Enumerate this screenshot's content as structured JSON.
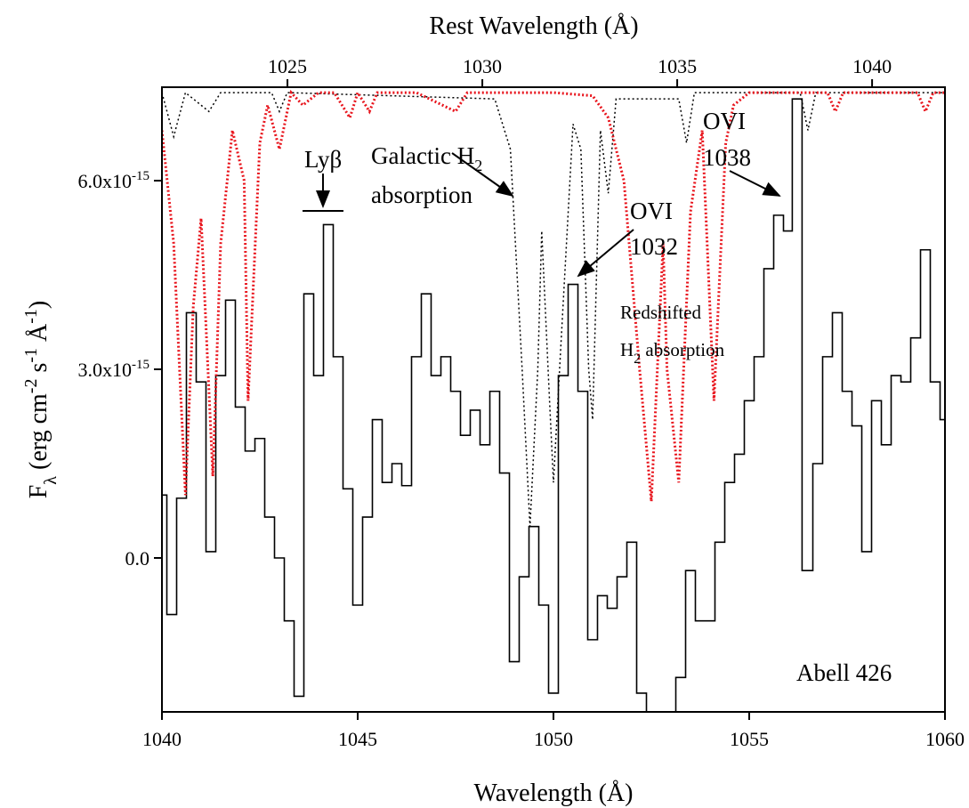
{
  "chart_data": {
    "type": "spectrum",
    "xlabel": "Wavelength (Å)",
    "x2label": "Rest Wavelength (Å)",
    "ylabel": [
      {
        "text": "F"
      },
      {
        "text": "λ",
        "shift": "sub"
      },
      {
        "text": " (erg cm"
      },
      {
        "text": "-2",
        "shift": "super"
      },
      {
        "text": " s"
      },
      {
        "text": "-1",
        "shift": "super"
      },
      {
        "text": " Å"
      },
      {
        "text": "-1",
        "shift": "super"
      },
      {
        "text": ")"
      }
    ],
    "xlim": [
      1040,
      1060
    ],
    "xticks": [
      1040,
      1045,
      1050,
      1055,
      1060
    ],
    "x2lim": [
      1021.78,
      1041.87
    ],
    "x2ticks": [
      1025,
      1030,
      1035,
      1040
    ],
    "ylim": [
      -2.448e-15,
      7.486e-15
    ],
    "yticks": [
      {
        "value": 0,
        "label": "0.0"
      },
      {
        "value": 3e-15,
        "label": "3.0x10",
        "exponent": "-15"
      },
      {
        "value": 6e-15,
        "label": "6.0x10",
        "exponent": "-15"
      }
    ],
    "series": [
      {
        "color": "#000000",
        "style": "step",
        "x": [
          1040.0,
          1040.25,
          1040.5,
          1040.75,
          1041.0,
          1041.25,
          1041.5,
          1041.75,
          1042.0,
          1042.25,
          1042.5,
          1042.75,
          1043.0,
          1043.25,
          1043.5,
          1043.75,
          1044.0,
          1044.25,
          1044.5,
          1044.75,
          1045.0,
          1045.25,
          1045.5,
          1045.75,
          1046.0,
          1046.25,
          1046.5,
          1046.75,
          1047.0,
          1047.25,
          1047.5,
          1047.75,
          1048.0,
          1048.25,
          1048.5,
          1048.75,
          1049.0,
          1049.25,
          1049.5,
          1049.75,
          1050.0,
          1050.25,
          1050.5,
          1050.75,
          1051.0,
          1051.25,
          1051.5,
          1051.75,
          1052.0,
          1052.25,
          1052.5,
          1052.75,
          1053.0,
          1053.25,
          1053.5,
          1053.75,
          1054.0,
          1054.25,
          1054.5,
          1054.75,
          1055.0,
          1055.25,
          1055.5,
          1055.75,
          1056.0,
          1056.2,
          1056.5,
          1056.75,
          1057.0,
          1057.25,
          1057.5,
          1057.75,
          1058.0,
          1058.25,
          1058.5,
          1058.75,
          1059.0,
          1059.25,
          1059.5,
          1059.75,
          1060.0
        ],
        "values": [
          1e-15,
          -9e-16,
          9.5e-16,
          3.9e-15,
          2.8e-15,
          1e-16,
          2.9e-15,
          4.1e-15,
          2.4e-15,
          1.7e-15,
          1.9e-15,
          6.5e-16,
          0.0,
          -1e-15,
          -2.2e-15,
          4.2e-15,
          2.9e-15,
          5.3e-15,
          3.2e-15,
          1.1e-15,
          -7.5e-16,
          6.5e-16,
          2.2e-15,
          1.2e-15,
          1.5e-15,
          1.15e-15,
          3.2e-15,
          4.2e-15,
          2.9e-15,
          3.2e-15,
          2.65e-15,
          1.95e-15,
          2.35e-15,
          1.8e-15,
          2.65e-15,
          1.35e-15,
          -1.65e-15,
          -3e-16,
          5e-16,
          -7.5e-16,
          -2.15e-15,
          2.9e-15,
          4.35e-15,
          2.65e-15,
          -1.3e-15,
          -6e-16,
          -8e-16,
          -3e-16,
          2.5e-16,
          -2.15e-15,
          -2.6e-15,
          -2.6e-15,
          -2.6e-15,
          -1.9e-15,
          -2e-16,
          -1e-15,
          -1e-15,
          2.5e-16,
          1.2e-15,
          1.65e-15,
          2.5e-15,
          3.2e-15,
          4.6e-15,
          5.45e-15,
          5.2e-15,
          7.3e-15,
          -2e-16,
          1.5e-15,
          3.2e-15,
          3.9e-15,
          2.65e-15,
          2.1e-15,
          1e-16,
          2.5e-15,
          1.8e-15,
          2.9e-15,
          2.8e-15,
          3.5e-15,
          4.9e-15,
          2.8e-15,
          2.2e-15
        ]
      },
      {
        "color": "#000000",
        "style": "dotted",
        "x": [
          1040.0,
          1040.3,
          1040.6,
          1041.2,
          1041.5,
          1042.8,
          1043.0,
          1043.2,
          1048.5,
          1048.9,
          1049.2,
          1049.4,
          1049.6,
          1049.7,
          1049.9,
          1050.0,
          1050.2,
          1050.5,
          1050.7,
          1050.9,
          1051.0,
          1051.2,
          1051.4,
          1051.6,
          1053.2,
          1053.4,
          1053.6,
          1056.3,
          1056.5,
          1056.7,
          1060.0
        ],
        "values": [
          7.4e-15,
          6.7e-15,
          7.4e-15,
          7.1e-15,
          7.4e-15,
          7.4e-15,
          7.1e-15,
          7.4e-15,
          7.3e-15,
          6.5e-15,
          3e-15,
          5e-16,
          3e-15,
          5.2e-15,
          2.5e-15,
          1.2e-15,
          3.5e-15,
          6.9e-15,
          6.5e-15,
          3e-15,
          2.2e-15,
          6.8e-15,
          5.8e-15,
          7.3e-15,
          7.3e-15,
          6.6e-15,
          7.4e-15,
          7.4e-15,
          6.8e-15,
          7.4e-15,
          7.4e-15
        ]
      },
      {
        "color": "#e8141c",
        "style": "dotted",
        "x": [
          1040.0,
          1040.3,
          1040.6,
          1040.8,
          1041.0,
          1041.3,
          1041.5,
          1041.8,
          1042.1,
          1042.2,
          1042.5,
          1042.7,
          1043.0,
          1043.3,
          1043.6,
          1044.0,
          1044.4,
          1044.8,
          1045.0,
          1045.3,
          1045.5,
          1046.5,
          1047.5,
          1047.8,
          1050.0,
          1051.0,
          1051.4,
          1051.8,
          1052.2,
          1052.5,
          1052.8,
          1052.9,
          1053.2,
          1053.5,
          1053.8,
          1054.1,
          1054.4,
          1054.6,
          1055.0,
          1057.0,
          1057.2,
          1057.4,
          1059.3,
          1059.5,
          1059.7,
          1060.0
        ],
        "values": [
          6.8e-15,
          5e-15,
          1e-15,
          4e-15,
          5.4e-15,
          1.3e-15,
          5e-15,
          6.8e-15,
          6e-15,
          2.5e-15,
          6.6e-15,
          7.2e-15,
          6.5e-15,
          7.4e-15,
          7.2e-15,
          7.4e-15,
          7.4e-15,
          7e-15,
          7.4e-15,
          7.1e-15,
          7.4e-15,
          7.4e-15,
          7.1e-15,
          7.4e-15,
          7.4e-15,
          7.35e-15,
          7e-15,
          6e-15,
          3e-15,
          9e-16,
          5e-15,
          3e-15,
          1.2e-15,
          5.5e-15,
          6.8e-15,
          2.5e-15,
          6.6e-15,
          7.2e-15,
          7.4e-15,
          7.4e-15,
          7.1e-15,
          7.4e-15,
          7.4e-15,
          7.1e-15,
          7.4e-15,
          7.4e-15
        ]
      }
    ],
    "annotations": {
      "lyb": "Lyβ",
      "galactic": "Galactic H",
      "galactic_sub": "2",
      "galactic_2": "absorption",
      "ovi1032": "OVI",
      "ovi1032_2": "1032",
      "ovi1038": "OVI",
      "ovi1038_2": "1038",
      "redshifted": "Redshifted",
      "redshifted_h": "H",
      "redshifted_sub": "2",
      "redshifted_2": " absorption",
      "object": "Abell 426"
    }
  }
}
